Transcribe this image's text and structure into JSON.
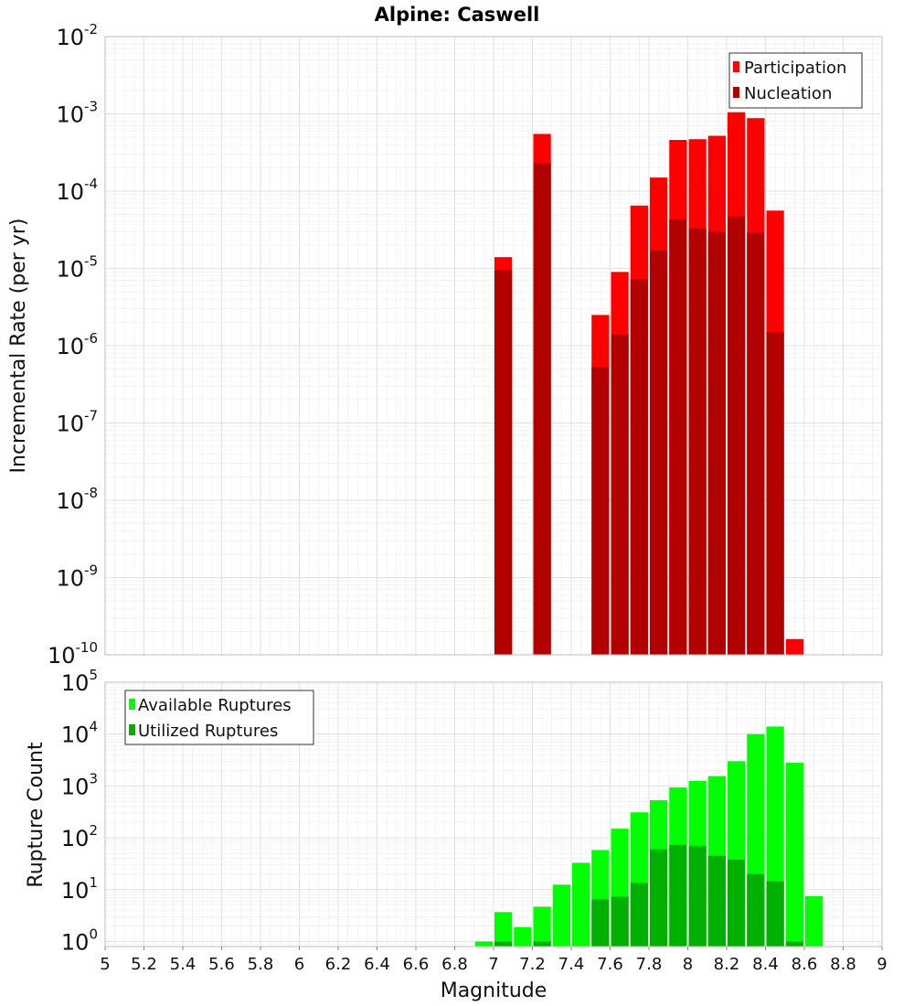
{
  "title": "Alpine: Caswell",
  "colors": {
    "participation": "#ff0000",
    "nucleation": "#b20000",
    "available": "#00ff00",
    "utilized": "#00b000",
    "frame": "#bdbdbd",
    "legend_border": "#333333"
  },
  "chart_data": [
    {
      "type": "bar",
      "ylabel": "Incremental Rate (per yr)",
      "yscale": "log",
      "ylim": [
        1e-10,
        0.01
      ],
      "xlim": [
        5,
        9
      ],
      "legend": "top-right",
      "grid": true,
      "x": [
        7.05,
        7.25,
        7.55,
        7.65,
        7.75,
        7.85,
        7.95,
        8.05,
        8.15,
        8.25,
        8.35,
        8.45,
        8.55
      ],
      "series": [
        {
          "name": "Participation",
          "values": [
            1.4e-05,
            0.00055,
            2.5e-06,
            9e-06,
            6.5e-05,
            0.00015,
            0.00046,
            0.00047,
            0.00052,
            0.00105,
            0.00088,
            5.6e-05,
            1.6e-10
          ]
        },
        {
          "name": "Nucleation",
          "values": [
            9.5e-06,
            0.00023,
            5.3e-07,
            1.4e-06,
            7.2e-06,
            1.7e-05,
            4.3e-05,
            3.3e-05,
            3e-05,
            4.7e-05,
            2.9e-05,
            1.5e-06,
            null
          ]
        }
      ],
      "ytick_labels": [
        {
          "base": "10",
          "exp": "-10"
        },
        {
          "base": "10",
          "exp": "-9"
        },
        {
          "base": "10",
          "exp": "-8"
        },
        {
          "base": "10",
          "exp": "-7"
        },
        {
          "base": "10",
          "exp": "-6"
        },
        {
          "base": "10",
          "exp": "-5"
        },
        {
          "base": "10",
          "exp": "-4"
        },
        {
          "base": "10",
          "exp": "-3"
        },
        {
          "base": "10",
          "exp": "-2"
        }
      ]
    },
    {
      "type": "bar",
      "xlabel": "Magnitude",
      "ylabel": "Rupture Count",
      "yscale": "log",
      "ylim": [
        0.8,
        100000
      ],
      "xlim": [
        5,
        9
      ],
      "legend": "top-left",
      "grid": true,
      "x": [
        6.95,
        7.05,
        7.15,
        7.25,
        7.35,
        7.45,
        7.55,
        7.65,
        7.75,
        7.85,
        7.95,
        8.05,
        8.15,
        8.25,
        8.35,
        8.45,
        8.55,
        8.65
      ],
      "series": [
        {
          "name": "Available Ruptures",
          "values": [
            1,
            3.7,
            1.9,
            4.7,
            12.5,
            33,
            58,
            150,
            310,
            530,
            940,
            1250,
            1550,
            3000,
            10000,
            14000,
            2800,
            7.5
          ]
        },
        {
          "name": "Utilized Ruptures",
          "values": [
            null,
            1,
            null,
            1,
            null,
            null,
            6.5,
            7.3,
            13.5,
            60,
            73,
            70,
            45,
            38,
            20,
            14.5,
            1,
            null
          ]
        }
      ],
      "ytick_labels": [
        {
          "base": "10",
          "exp": "0"
        },
        {
          "base": "10",
          "exp": "1"
        },
        {
          "base": "10",
          "exp": "2"
        },
        {
          "base": "10",
          "exp": "3"
        },
        {
          "base": "10",
          "exp": "4"
        },
        {
          "base": "10",
          "exp": "5"
        }
      ],
      "xtick_labels": [
        "5",
        "5.2",
        "5.4",
        "5.6",
        "5.8",
        "6",
        "6.2",
        "6.4",
        "6.6",
        "6.8",
        "7",
        "7.2",
        "7.4",
        "7.6",
        "7.8",
        "8",
        "8.2",
        "8.4",
        "8.6",
        "8.8",
        "9"
      ]
    }
  ]
}
